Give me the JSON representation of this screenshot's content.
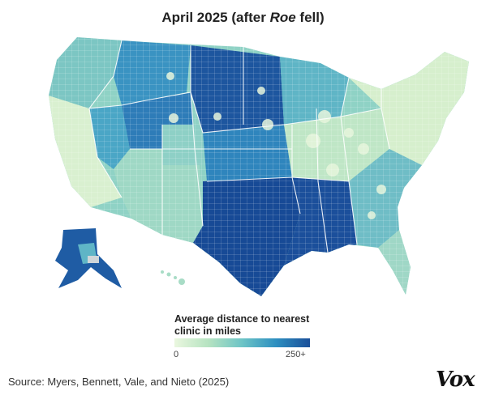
{
  "title": {
    "prefix": "April 2025 (after ",
    "emphasis": "Roe",
    "suffix": " fell)"
  },
  "legend": {
    "title": "Average distance to nearest clinic in miles",
    "min_label": "0",
    "max_label": "250+",
    "colors": [
      "#eaf7df",
      "#b6e3c1",
      "#6cc4c6",
      "#2d8fc0",
      "#1a4f9a"
    ]
  },
  "source": "Source: Myers, Bennett, Vale, and Nieto (2025)",
  "logo": "Vox",
  "map": {
    "type": "choropleth",
    "region": "United States counties",
    "regions": [
      {
        "name": "Pacific Northwest",
        "level": 0.3
      },
      {
        "name": "California",
        "level": 0.1
      },
      {
        "name": "Nevada",
        "level": 0.55
      },
      {
        "name": "Idaho / Montana",
        "level": 0.6
      },
      {
        "name": "Utah / Wyoming",
        "level": 0.75
      },
      {
        "name": "Arizona / New Mexico",
        "level": 0.35
      },
      {
        "name": "Colorado",
        "level": 0.3
      },
      {
        "name": "Northern Plains",
        "level": 0.95
      },
      {
        "name": "Central Plains",
        "level": 0.55
      },
      {
        "name": "Texas / Oklahoma",
        "level": 1.0
      },
      {
        "name": "Deep South",
        "level": 0.95
      },
      {
        "name": "Upper Midwest",
        "level": 0.35
      },
      {
        "name": "Great Lakes / Ohio Valley",
        "level": 0.15
      },
      {
        "name": "Appalachia / Southeast",
        "level": 0.4
      },
      {
        "name": "Mid-Atlantic / Northeast",
        "level": 0.1
      },
      {
        "name": "Florida",
        "level": 0.25
      },
      {
        "name": "Alaska",
        "level": 0.9
      },
      {
        "name": "Hawaii",
        "level": 0.1
      }
    ]
  }
}
